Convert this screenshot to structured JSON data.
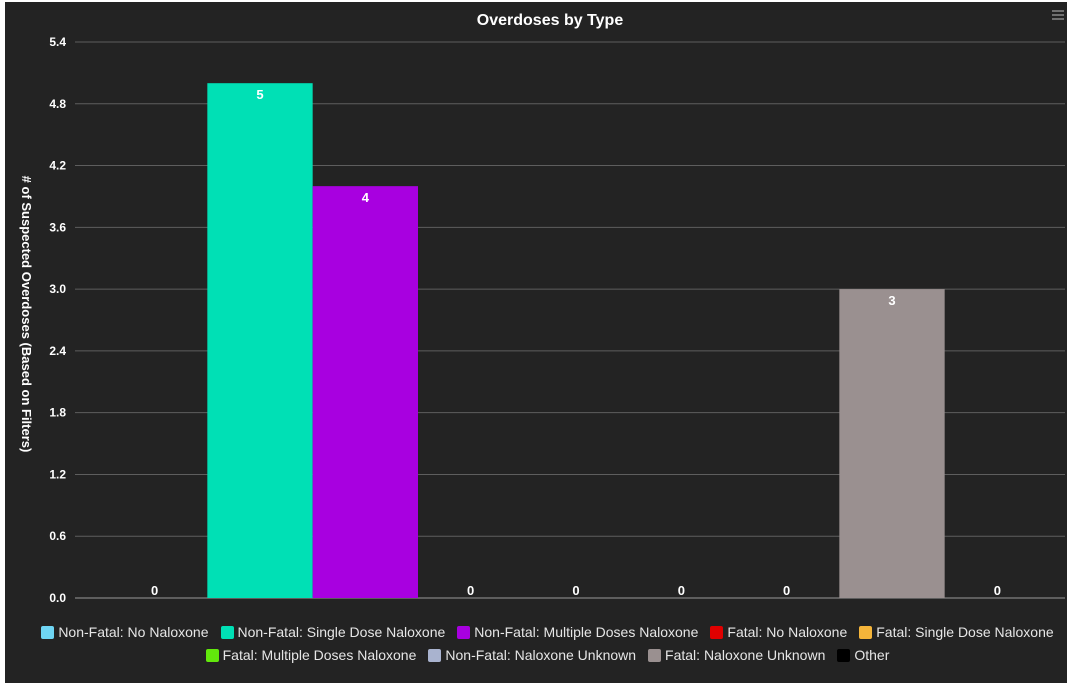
{
  "chart_data": {
    "type": "bar",
    "title": "Overdoses by Type",
    "ylabel": "# of Suspected Overdoses (Based on Filters)",
    "xlabel": "",
    "ylim": [
      0,
      5.4
    ],
    "yticks": [
      "0.0",
      "0.6",
      "1.2",
      "1.8",
      "2.4",
      "3.0",
      "3.6",
      "4.2",
      "4.8",
      "5.4"
    ],
    "grid": true,
    "legend_position": "bottom",
    "series": [
      {
        "name": "Non-Fatal: No Naloxone",
        "value": 0,
        "label": "0",
        "color": "#6fd6f4"
      },
      {
        "name": "Non-Fatal: Single Dose Naloxone",
        "value": 5,
        "label": "5",
        "color": "#00e0b5"
      },
      {
        "name": "Non-Fatal: Multiple Doses Naloxone",
        "value": 4,
        "label": "4",
        "color": "#a800e0"
      },
      {
        "name": "Fatal: No Naloxone",
        "value": 0,
        "label": "0",
        "color": "#e00000"
      },
      {
        "name": "Fatal: Single Dose Naloxone",
        "value": 0,
        "label": "0",
        "color": "#f5b53a"
      },
      {
        "name": "Fatal: Multiple Doses Naloxone",
        "value": 0,
        "label": "0",
        "color": "#62e80c"
      },
      {
        "name": "Non-Fatal: Naloxone Unknown",
        "value": 0,
        "label": "0",
        "color": "#a9b3cf"
      },
      {
        "name": "Fatal: Naloxone Unknown",
        "value": 3,
        "label": "3",
        "color": "#9a9090"
      },
      {
        "name": "Other",
        "value": 0,
        "label": "0",
        "color": "#000000"
      }
    ]
  },
  "colors": {
    "background": "#232323",
    "gridline": "#5e5e5e",
    "text": "#ffffff"
  },
  "menu_icon": "hamburger-menu-icon"
}
